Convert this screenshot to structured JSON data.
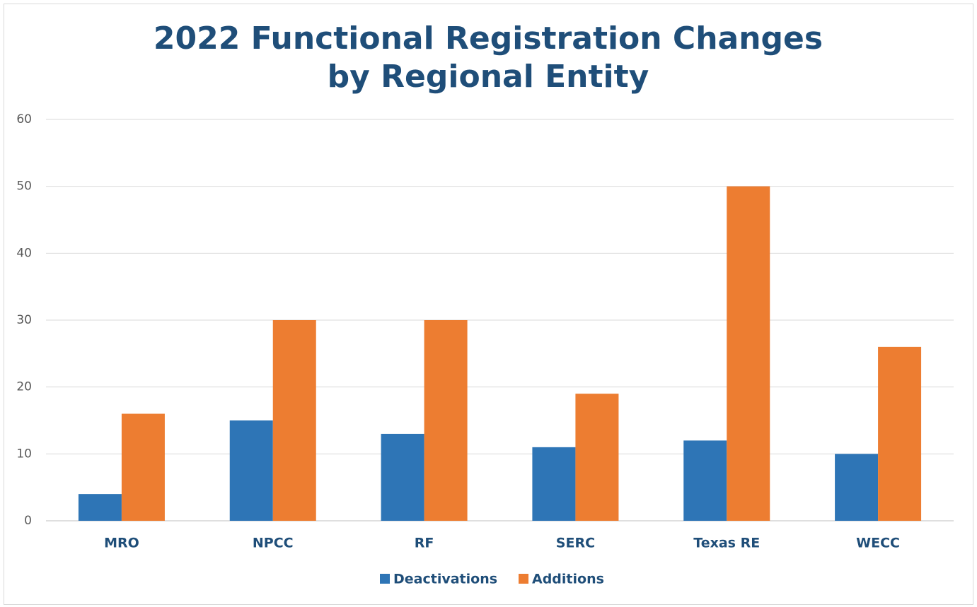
{
  "chart_data": {
    "type": "bar",
    "title": [
      "2022 Functional Registration Changes",
      "by Regional Entity"
    ],
    "categories": [
      "MRO",
      "NPCC",
      "RF",
      "SERC",
      "Texas RE",
      "WECC"
    ],
    "series": [
      {
        "name": "Deactivations",
        "color": "#2e75b6",
        "values": [
          4,
          15,
          13,
          11,
          12,
          10
        ]
      },
      {
        "name": "Additions",
        "color": "#ed7d31",
        "values": [
          16,
          30,
          30,
          19,
          50,
          26
        ]
      }
    ],
    "ylim": [
      0,
      60
    ],
    "yticks": [
      0,
      10,
      20,
      30,
      40,
      50,
      60
    ],
    "grid": true,
    "legend": "bottom"
  }
}
